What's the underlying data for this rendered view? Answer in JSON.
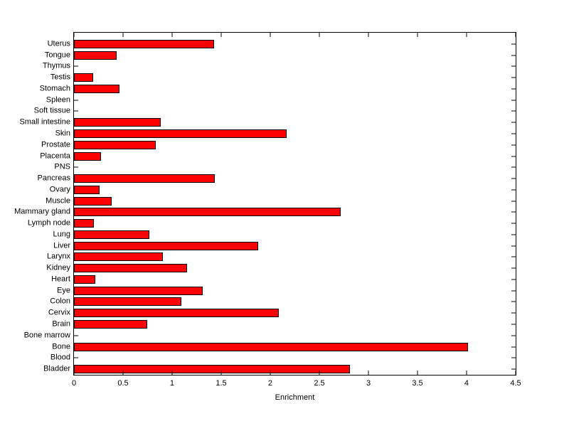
{
  "figure": {
    "background": "#ffffff",
    "axis_color": "#000000",
    "text_color": "#000000"
  },
  "chart_data": {
    "type": "bar",
    "orientation": "horizontal",
    "title": "",
    "xlabel": "Enrichment",
    "ylabel": "",
    "categories": [
      "Uterus",
      "Tongue",
      "Thymus",
      "Testis",
      "Stomach",
      "Spleen",
      "Soft tissue",
      "Small intestine",
      "Skin",
      "Prostate",
      "Placenta",
      "PNS",
      "Pancreas",
      "Ovary",
      "Muscle",
      "Mammary gland",
      "Lymph node",
      "Lung",
      "Liver",
      "Larynx",
      "Kidney",
      "Heart",
      "Eye",
      "Colon",
      "Cervix",
      "Brain",
      "Bone marrow",
      "Bone",
      "Blood",
      "Bladder"
    ],
    "values": [
      1.41,
      0.42,
      0,
      0.18,
      0.45,
      0,
      0,
      0.87,
      2.15,
      0.82,
      0.26,
      0,
      1.42,
      0.25,
      0.37,
      2.7,
      0.19,
      0.75,
      1.86,
      0.89,
      1.14,
      0.2,
      1.3,
      1.08,
      2.07,
      0.73,
      0,
      4.0,
      0,
      2.8
    ],
    "xlim": [
      0,
      4.5
    ],
    "xticks": [
      0,
      0.5,
      1,
      1.5,
      2,
      2.5,
      3,
      3.5,
      4,
      4.5
    ],
    "xtick_labels": [
      "0",
      "0.5",
      "1",
      "1.5",
      "2",
      "2.5",
      "3",
      "3.5",
      "4",
      "4.5"
    ],
    "bar_color": "#ff0000",
    "bar_edge_color": "#000000",
    "grid": false,
    "legend": null
  }
}
